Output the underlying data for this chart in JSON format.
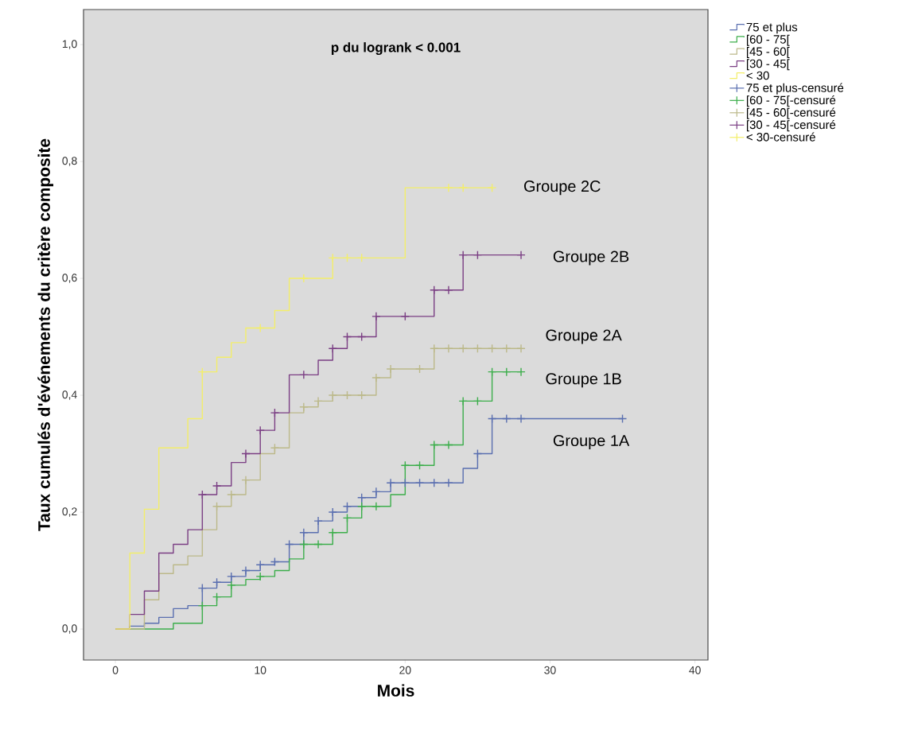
{
  "chart_data": {
    "type": "step",
    "xlabel": "Mois",
    "ylabel": "Taux cumulés d'événements du critère composite",
    "xlim": [
      -2.2,
      40.9
    ],
    "ylim": [
      -0.053,
      1.06
    ],
    "xticks": [
      0,
      10,
      20,
      30,
      40
    ],
    "yticks": [
      {
        "value": 0,
        "label": "0,0"
      },
      {
        "value": 0.2,
        "label": "0,2"
      },
      {
        "value": 0.4,
        "label": "0,4"
      },
      {
        "value": 0.6,
        "label": "0,6"
      },
      {
        "value": 0.8,
        "label": "0,8"
      },
      {
        "value": 1.0,
        "label": "1,0"
      }
    ],
    "grid": false,
    "legend": "right",
    "line_style": "solid",
    "annotations": [
      "**p du logrank < 0.001**",
      "Groupe 2C",
      "Groupe 2B",
      "Groupe 2A",
      "Groupe 1B",
      "Groupe 1A"
    ],
    "series": [
      {
        "name": "75 et plus",
        "color": "#5a6fb0",
        "marker": "none",
        "x": [
          0,
          1,
          2,
          3,
          4,
          5,
          6,
          7,
          8,
          9,
          10,
          11,
          12,
          13,
          14,
          15,
          16,
          17,
          18,
          19,
          24,
          25,
          26,
          35
        ],
        "values": [
          0,
          0.005,
          0.01,
          0.02,
          0.035,
          0.04,
          0.07,
          0.08,
          0.09,
          0.1,
          0.11,
          0.115,
          0.145,
          0.165,
          0.185,
          0.2,
          0.21,
          0.225,
          0.235,
          0.25,
          0.275,
          0.3,
          0.36,
          0.36
        ]
      },
      {
        "name": "[60 - 75[",
        "color": "#3cae4b",
        "marker": "none",
        "x": [
          0,
          4,
          6,
          7,
          8,
          9,
          10,
          11,
          12,
          13,
          15,
          16,
          17,
          19,
          20,
          22,
          24,
          26,
          28
        ],
        "values": [
          0,
          0.01,
          0.04,
          0.055,
          0.075,
          0.085,
          0.09,
          0.1,
          0.12,
          0.145,
          0.165,
          0.19,
          0.21,
          0.23,
          0.28,
          0.315,
          0.39,
          0.44,
          0.44
        ]
      },
      {
        "name": "[45 - 60[",
        "color": "#bcb98a",
        "marker": "none",
        "x": [
          0,
          2,
          3,
          4,
          5,
          6,
          7,
          8,
          9,
          10,
          11,
          12,
          13,
          14,
          15,
          18,
          19,
          22,
          28
        ],
        "values": [
          0,
          0.05,
          0.095,
          0.11,
          0.125,
          0.17,
          0.21,
          0.23,
          0.255,
          0.3,
          0.31,
          0.37,
          0.38,
          0.39,
          0.4,
          0.43,
          0.445,
          0.48,
          0.48
        ]
      },
      {
        "name": "[30 - 45[",
        "color": "#7b3f84",
        "marker": "none",
        "x": [
          0,
          1,
          2,
          3,
          4,
          5,
          6,
          7,
          8,
          9,
          10,
          11,
          12,
          14,
          15,
          16,
          18,
          22,
          24,
          28
        ],
        "values": [
          0,
          0.025,
          0.065,
          0.13,
          0.145,
          0.17,
          0.23,
          0.245,
          0.285,
          0.3,
          0.34,
          0.37,
          0.435,
          0.46,
          0.48,
          0.5,
          0.535,
          0.58,
          0.64,
          0.64
        ]
      },
      {
        "name": "< 30",
        "color": "#f3ee6a",
        "marker": "none",
        "x": [
          0,
          1,
          2,
          3,
          5,
          6,
          7,
          8,
          9,
          11,
          12,
          15,
          20,
          26
        ],
        "values": [
          0,
          0.13,
          0.205,
          0.31,
          0.36,
          0.44,
          0.465,
          0.49,
          0.515,
          0.545,
          0.6,
          0.635,
          0.755,
          0.755
        ]
      },
      {
        "name": "75 et plus-censuré",
        "color": "#5a6fb0",
        "type": "scatter",
        "marker": "cross",
        "x": [
          6,
          7,
          8,
          9,
          10,
          11,
          12,
          13,
          14,
          15,
          16,
          17,
          18,
          19,
          20,
          21,
          22,
          23,
          25,
          26,
          27,
          28,
          35
        ],
        "values": [
          0.07,
          0.08,
          0.09,
          0.1,
          0.11,
          0.115,
          0.145,
          0.165,
          0.185,
          0.2,
          0.21,
          0.225,
          0.235,
          0.25,
          0.25,
          0.25,
          0.25,
          0.25,
          0.3,
          0.36,
          0.36,
          0.36,
          0.36
        ]
      },
      {
        "name": "[60 - 75[-censuré",
        "color": "#3cae4b",
        "type": "scatter",
        "marker": "cross",
        "x": [
          6,
          7,
          8,
          10,
          13,
          14,
          15,
          16,
          17,
          18,
          20,
          21,
          22,
          23,
          24,
          25,
          26,
          27,
          28
        ],
        "values": [
          0.04,
          0.055,
          0.075,
          0.09,
          0.145,
          0.145,
          0.165,
          0.19,
          0.21,
          0.21,
          0.28,
          0.28,
          0.315,
          0.315,
          0.39,
          0.39,
          0.44,
          0.44,
          0.44
        ]
      },
      {
        "name": "[45 - 60[-censuré",
        "color": "#bcb98a",
        "type": "scatter",
        "marker": "cross",
        "x": [
          7,
          8,
          9,
          11,
          13,
          14,
          15,
          16,
          17,
          18,
          19,
          21,
          22,
          23,
          24,
          25,
          26,
          27,
          28
        ],
        "values": [
          0.21,
          0.23,
          0.255,
          0.31,
          0.38,
          0.39,
          0.4,
          0.4,
          0.4,
          0.43,
          0.445,
          0.445,
          0.48,
          0.48,
          0.48,
          0.48,
          0.48,
          0.48,
          0.48
        ]
      },
      {
        "name": "[30 - 45[-censuré",
        "color": "#7b3f84",
        "type": "scatter",
        "marker": "cross",
        "x": [
          6,
          7,
          9,
          10,
          11,
          13,
          15,
          16,
          17,
          18,
          20,
          22,
          23,
          24,
          25,
          28
        ],
        "values": [
          0.23,
          0.245,
          0.3,
          0.34,
          0.37,
          0.435,
          0.48,
          0.5,
          0.5,
          0.535,
          0.535,
          0.58,
          0.58,
          0.64,
          0.64,
          0.64
        ]
      },
      {
        "name": "< 30-censuré",
        "color": "#f3ee6a",
        "type": "scatter",
        "marker": "cross",
        "x": [
          6,
          10,
          13,
          15,
          16,
          17,
          23,
          24,
          26
        ],
        "values": [
          0.44,
          0.515,
          0.6,
          0.635,
          0.635,
          0.635,
          0.755,
          0.755,
          0.755
        ]
      }
    ]
  }
}
